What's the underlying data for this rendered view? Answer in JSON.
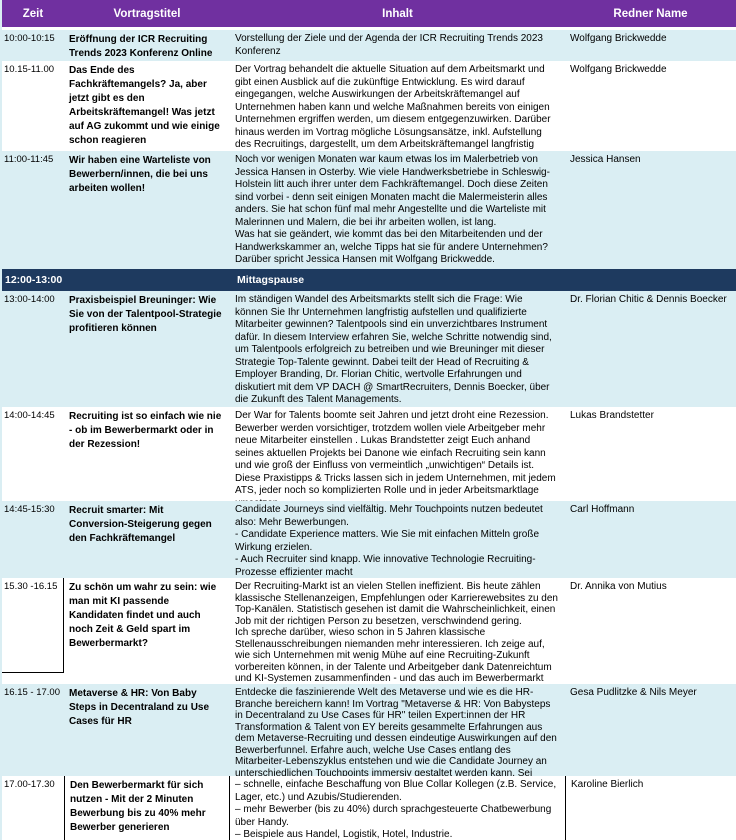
{
  "table": {
    "columns": [
      "Zeit",
      "Vortragstitel",
      "Inhalt",
      "Redner Name"
    ],
    "colors": {
      "header_bg": "#7030A0",
      "band_cyan": "#DAEEF3",
      "lunch_bg": "#1E3A5F",
      "header_text": "#FFFFFF",
      "grid_black": "#000000"
    },
    "lunch": {
      "time": "12:00-13:00",
      "label": "Mittagspause"
    },
    "sessions": [
      {
        "time": "10:00-10:15",
        "title": "Eröffnung der ICR Recruiting Trends 2023 Konferenz Online",
        "content": "Vorstellung der Ziele und der Agenda der ICR Recruiting Trends 2023 Konferenz",
        "speaker": "Wolfgang Brickwedde"
      },
      {
        "time": "10.15-11.00",
        "title": "Das Ende des Fachkräftemangels? Ja, aber jetzt gibt es den Arbeitskräftemangel! Was jetzt auf AG zukommt und wie einige schon reagieren",
        "content": "Der Vortrag behandelt die aktuelle Situation auf dem Arbeitsmarkt und gibt einen Ausblick auf die zukünftige Entwicklung. Es wird darauf eingegangen, welche Auswirkungen der Arbeitskräftemangel auf Unternehmen haben kann und welche Maßnahmen bereits von einigen Unternehmen ergriffen werden, um diesem entgegenzuwirken. Darüber hinaus werden im Vortrag mögliche Lösungsansätze, inkl. Aufstellung des Recruitings, dargestellt, um dem Arbeitskräftemangel langfristig entgegenzuwirken.",
        "speaker": "Wolfgang Brickwedde"
      },
      {
        "time": "11:00-11:45",
        "title": "Wir haben eine Warteliste von Bewerbern/innen, die bei uns arbeiten wollen!",
        "content": "Noch vor wenigen Monaten war kaum etwas los im Malerbetrieb von Jessica Hansen in Osterby. Wie viele Handwerksbetriebe in Schleswig-Holstein litt auch ihrer unter dem Fachkräftemangel. Doch diese Zeiten sind vorbei - denn seit einigen Monaten macht die Malermeisterin alles anders. Sie hat schon fünf mal mehr Angestellte und die Warteliste mit Malerinnen und Malern, die bei ihr arbeiten wollen, ist lang.\nWas hat sie geändert, wie kommt das bei den Mitarbeitenden und der Handwerkskammer an, welche Tipps hat sie für andere Unternehmen?\nDarüber spricht Jessica Hansen mit Wolfgang Brickwedde.",
        "speaker": "Jessica Hansen"
      },
      {
        "time": "13:00-14:00",
        "title": "Praxisbeispiel Breuninger: Wie Sie von der Talentpool-Strategie profitieren können",
        "content": "Im ständigen Wandel des Arbeitsmarkts stellt sich die Frage: Wie können Sie Ihr Unternehmen langfristig aufstellen und qualifizierte Mitarbeiter gewinnen? Talentpools sind ein unverzichtbares Instrument dafür. In diesem Interview erfahren Sie, welche Schritte notwendig sind, um Talentpools erfolgreich zu betreiben und wie Breuninger mit dieser Strategie Top-Talente gewinnt. Dabei teilt der Head of Recruiting & Employer Branding, Dr. Florian Chitic, wertvolle Erfahrungen und diskutiert mit dem VP DACH @ SmartRecruiters, Dennis Boecker, über die Zukunft des Talent Managements.",
        "speaker": "Dr. Florian Chitic & Dennis Boecker"
      },
      {
        "time": "14:00-14:45",
        "title": "Recruiting ist so einfach wie nie - ob im Bewerbermarkt oder in der Rezession!",
        "content": "Der War for Talents boomte seit Jahren und jetzt droht eine Rezession. Bewerber werden vorsichtiger, trotzdem wollen viele Arbeitgeber mehr neue Mitarbeiter einstellen . Lukas Brandstetter zeigt Euch anhand seines aktuellen Projekts bei Danone wie einfach Recruiting sein kann und wie groß der Einfluss von vermeintlich „unwichtigen“ Details ist. Diese Praxistipps & Tricks lassen sich in jedem Unternehmen, mit jedem ATS, jeder noch so komplizierten Rolle und in jeder Arbeitsmarktlage umsetzen.",
        "speaker": "Lukas Brandstetter"
      },
      {
        "time": "14:45-15:30",
        "title": "Recruit smarter: Mit Conversion-Steigerung gegen den Fachkräftemangel",
        "content": "Candidate Journeys sind vielfältig. Mehr Touchpoints nutzen bedeutet also: Mehr Bewerbungen.\n- Candidate Experience matters. Wie Sie mit einfachen Mitteln große Wirkung erzielen.\n- Auch Recruiter sind knapp. Wie innovative Technologie Recruiting-Prozesse effizienter macht",
        "speaker": "Carl Hoffmann"
      },
      {
        "time": "15.30 -16.15",
        "title": "Zu schön um wahr zu sein: wie man mit KI passende Kandidaten findet und auch noch Zeit & Geld spart im Bewerbermarkt?",
        "content": "Der Recruiting-Markt ist an vielen Stellen ineffizient. Bis heute zählen klassische Stellenanzeigen, Empfehlungen oder Karrierewebsites zu den Top-Kanälen. Statistisch gesehen ist damit die Wahrscheinlichkeit, einen Job mit der richtigen Person zu besetzen, verschwindend gering.\nIch spreche darüber, wieso schon in 5 Jahren klassische\nStellenausschreibungen niemanden mehr interessieren. Ich zeige auf, wie sich Unternehmen mit wenig Mühe auf eine Recruiting-Zukunft vorbereiten können, in der Talente und Arbeitgeber dank Datenreichtum und KI-Systemen zusammenfinden - und das auch im Bewerbermarkt",
        "speaker": "Dr. Annika von Mutius"
      },
      {
        "time": "16.15 - 17.00",
        "title": "Metaverse & HR: Von Baby Steps in Decentraland zu Use Cases für HR",
        "content": "Entdecke die faszinierende Welt des Metaverse und wie es die HR-Branche bereichern kann! Im Vortrag \"Metaverse & HR: Von Babysteps in Decentraland zu Use Cases für HR\" teilen Expert:innen der HR Transformation & Talent von EY bereits gesammelte Erfahrungen aus dem Metaverse-Recruiting und dessen eindeutige Auswirkungen auf den Bewerberfunnel. Erfahre auch, welche Use Cases entlang des Mitarbeiter-Lebenszyklus entstehen und wie die Candidate Journey an unterschiedlichen Touchpoints immersiv gestaltet werden kann. Sei dabei und lass dich inspirieren!",
        "speaker": "Gesa Pudlitzke & Nils Meyer"
      },
      {
        "time": "17.00-17.30",
        "title": "Den Bewerbermarkt für sich nutzen - Mit der 2 Minuten Bewerbung bis zu 40% mehr Bewerber generieren",
        "content": "– schnelle, einfache Beschaffung von Blue Collar Kollegen (z.B. Service, Lager, etc.) und Azubis/Studierenden.\n– mehr Bewerber (bis zu 40%) durch sprachgesteuerte Chatbewerbung über Handy.\n– Beispiele aus Handel, Logistik, Hotel, Industrie.",
        "speaker": "Karoline Bierlich"
      }
    ]
  }
}
